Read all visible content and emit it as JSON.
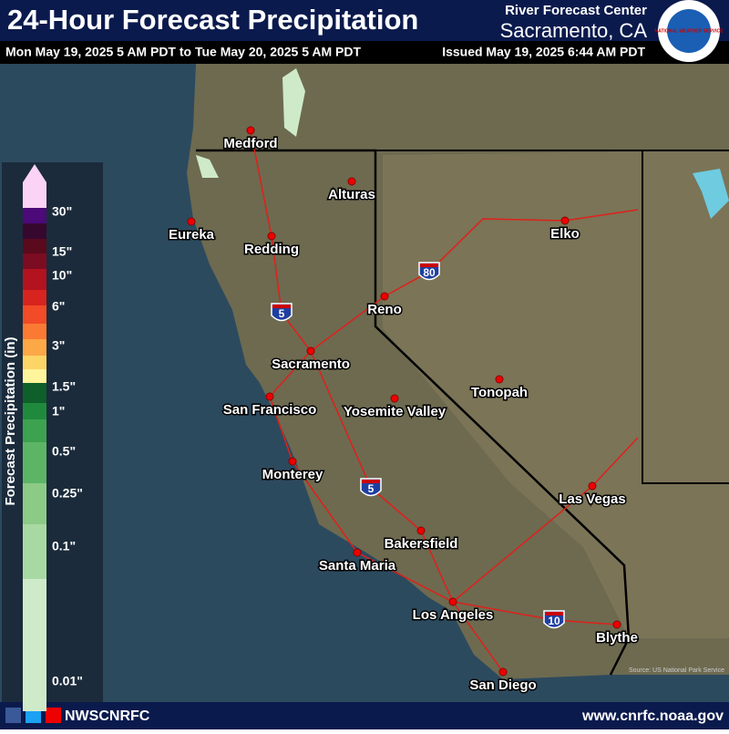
{
  "header": {
    "title": "24-Hour Forecast Precipitation",
    "period": "Mon May 19, 2025 5 AM PDT to Tue May 20, 2025 5 AM PDT",
    "issued": "Issued May 19, 2025 6:44 AM PDT",
    "org": "River Forecast Center",
    "office": "Sacramento, CA",
    "logo": "NATIONAL WEATHER SERVICE"
  },
  "legend": {
    "title": "Forecast Precipitation (in)",
    "labels": [
      "30\"",
      "15\"",
      "10\"",
      "6\"",
      "3\"",
      "1.5\"",
      "1\"",
      "0.5\"",
      "0.25\"",
      "0.1\"",
      "0.01\""
    ],
    "colors": [
      "#fbd3f6",
      "#4b0a78",
      "#36082f",
      "#5a0a1c",
      "#7c0c22",
      "#b3121f",
      "#d8241f",
      "#f14b27",
      "#fa7a33",
      "#fca847",
      "#fdd566",
      "#fff59c",
      "#0f5f2a",
      "#1f8a3c",
      "#3da24f",
      "#5cb565",
      "#8ccb86",
      "#a9d9a2",
      "#cfeac8"
    ]
  },
  "cities": [
    "Medford",
    "Eureka",
    "Redding",
    "Alturas",
    "Reno",
    "Elko",
    "Sacramento",
    "San Francisco",
    "Yosemite Valley",
    "Tonopah",
    "Monterey",
    "Las Vegas",
    "Bakersfield",
    "Santa Maria",
    "Los Angeles",
    "Blythe",
    "San Diego"
  ],
  "shields": [
    "5",
    "80",
    "5",
    "10"
  ],
  "source": "Source: US National Park Service",
  "footer": {
    "handle": "NWSCNRFC",
    "url": "www.cnrfc.noaa.gov"
  }
}
